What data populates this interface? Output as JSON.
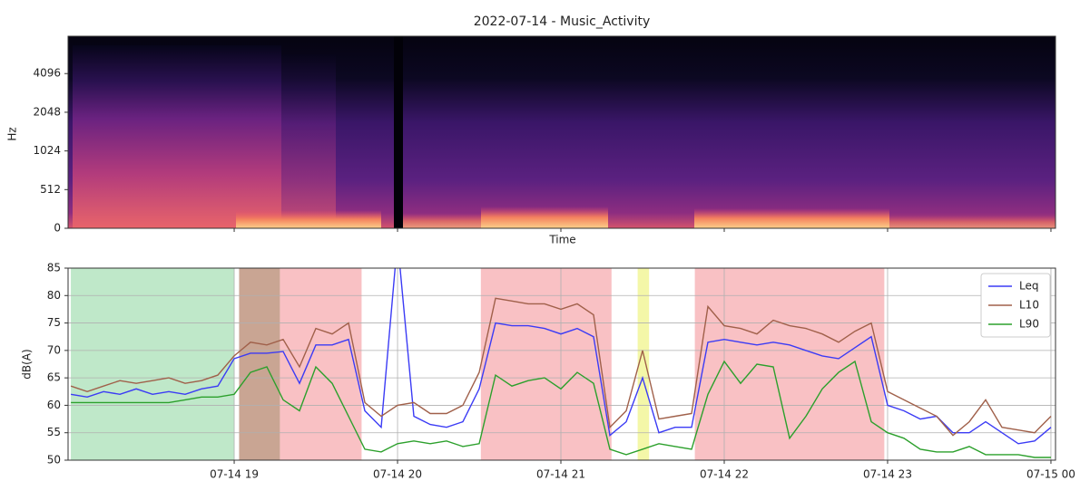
{
  "chart_data": [
    {
      "type": "spectrogram",
      "title": "2022-07-14 - Music_Activity",
      "xlabel": "Time",
      "ylabel": "Hz",
      "yscale": "symlog",
      "linthresh": 512,
      "base": 2,
      "ylim": [
        0,
        8000
      ],
      "yticks": [
        0,
        512,
        1024,
        2048,
        4096
      ],
      "xlim": [
        17.983,
        24.028
      ],
      "xticks": [
        19,
        20,
        21,
        22,
        23,
        24
      ]
    },
    {
      "type": "line",
      "ylabel": "dB(A)",
      "grid": true,
      "legend": "upper right",
      "xlim": [
        17.983,
        24.028
      ],
      "ylim": [
        50,
        85
      ],
      "xticks": [
        {
          "value": 19,
          "label": "07-14 19"
        },
        {
          "value": 20,
          "label": "07-14 20"
        },
        {
          "value": 21,
          "label": "07-14 21"
        },
        {
          "value": 22,
          "label": "07-14 22"
        },
        {
          "value": 23,
          "label": "07-14 23"
        },
        {
          "value": 24,
          "label": "07-15 00"
        }
      ],
      "yticks": [
        50,
        55,
        60,
        65,
        70,
        75,
        80,
        85
      ],
      "regions": [
        {
          "start": 18.0,
          "end": 19.0,
          "color": "#bfe8c9"
        },
        {
          "start": 19.03,
          "end": 19.28,
          "color": "#c9a593"
        },
        {
          "start": 19.28,
          "end": 19.78,
          "color": "#f9c1c4"
        },
        {
          "start": 20.51,
          "end": 21.31,
          "color": "#f9c1c4"
        },
        {
          "start": 21.47,
          "end": 21.54,
          "color": "#f4f7a8"
        },
        {
          "start": 21.82,
          "end": 22.98,
          "color": "#f9c1c4"
        }
      ],
      "x": [
        18.0,
        18.1,
        18.2,
        18.3,
        18.4,
        18.5,
        18.6,
        18.7,
        18.8,
        18.9,
        19.0,
        19.1,
        19.2,
        19.3,
        19.4,
        19.5,
        19.6,
        19.7,
        19.8,
        19.9,
        20.0,
        20.1,
        20.2,
        20.3,
        20.4,
        20.5,
        20.6,
        20.7,
        20.8,
        20.9,
        21.0,
        21.1,
        21.2,
        21.3,
        21.4,
        21.5,
        21.6,
        21.7,
        21.8,
        21.9,
        22.0,
        22.1,
        22.2,
        22.3,
        22.4,
        22.5,
        22.6,
        22.7,
        22.8,
        22.9,
        23.0,
        23.1,
        23.2,
        23.3,
        23.4,
        23.5,
        23.6,
        23.7,
        23.8,
        23.9,
        24.0
      ],
      "series": [
        {
          "name": "Leq",
          "color": "#3b3bf5",
          "values": [
            62,
            61.5,
            62.5,
            62,
            63,
            62,
            62.5,
            62,
            63,
            63.5,
            68.5,
            69.5,
            69.5,
            69.8,
            64,
            71,
            71,
            72,
            59,
            56,
            90,
            58,
            56.5,
            56,
            57,
            63,
            75,
            74.5,
            74.5,
            74,
            73,
            74,
            72.5,
            54.5,
            57,
            65,
            55,
            56,
            56,
            71.5,
            72,
            71.5,
            71,
            71.5,
            71,
            70,
            69,
            68.5,
            70.5,
            72.5,
            60,
            59,
            57.5,
            58,
            55,
            55,
            57,
            55,
            53,
            53.5,
            56
          ]
        },
        {
          "name": "L10",
          "color": "#a0604a",
          "values": [
            63.5,
            62.5,
            63.5,
            64.5,
            64,
            64.5,
            65,
            64,
            64.5,
            65.5,
            69,
            71.5,
            71,
            72,
            67,
            74,
            73,
            75,
            60.5,
            58,
            60,
            60.5,
            58.5,
            58.5,
            60,
            66,
            79.5,
            79,
            78.5,
            78.5,
            77.5,
            78.5,
            76.5,
            56,
            59,
            70,
            57.5,
            58,
            58.5,
            78,
            74.5,
            74,
            73,
            75.5,
            74.5,
            74,
            73,
            71.5,
            73.5,
            75,
            62.5,
            61,
            59.5,
            58,
            54.5,
            57,
            61,
            56,
            55.5,
            55,
            58
          ]
        },
        {
          "name": "L90",
          "color": "#2ca02c",
          "values": [
            60.5,
            60.5,
            60.5,
            60.5,
            60.5,
            60.5,
            60.5,
            61,
            61.5,
            61.5,
            62,
            66,
            67,
            61,
            59,
            67,
            64,
            58,
            52,
            51.5,
            53,
            53.5,
            53,
            53.5,
            52.5,
            53,
            65.5,
            63.5,
            64.5,
            65,
            63,
            66,
            64,
            52,
            51,
            52,
            53,
            52.5,
            52,
            62,
            68,
            64,
            67.5,
            67,
            54,
            58,
            63,
            66,
            68,
            57,
            55,
            54,
            52,
            51.5,
            51.5,
            52.5,
            51,
            51,
            51,
            50.5,
            50.5
          ]
        }
      ]
    }
  ]
}
